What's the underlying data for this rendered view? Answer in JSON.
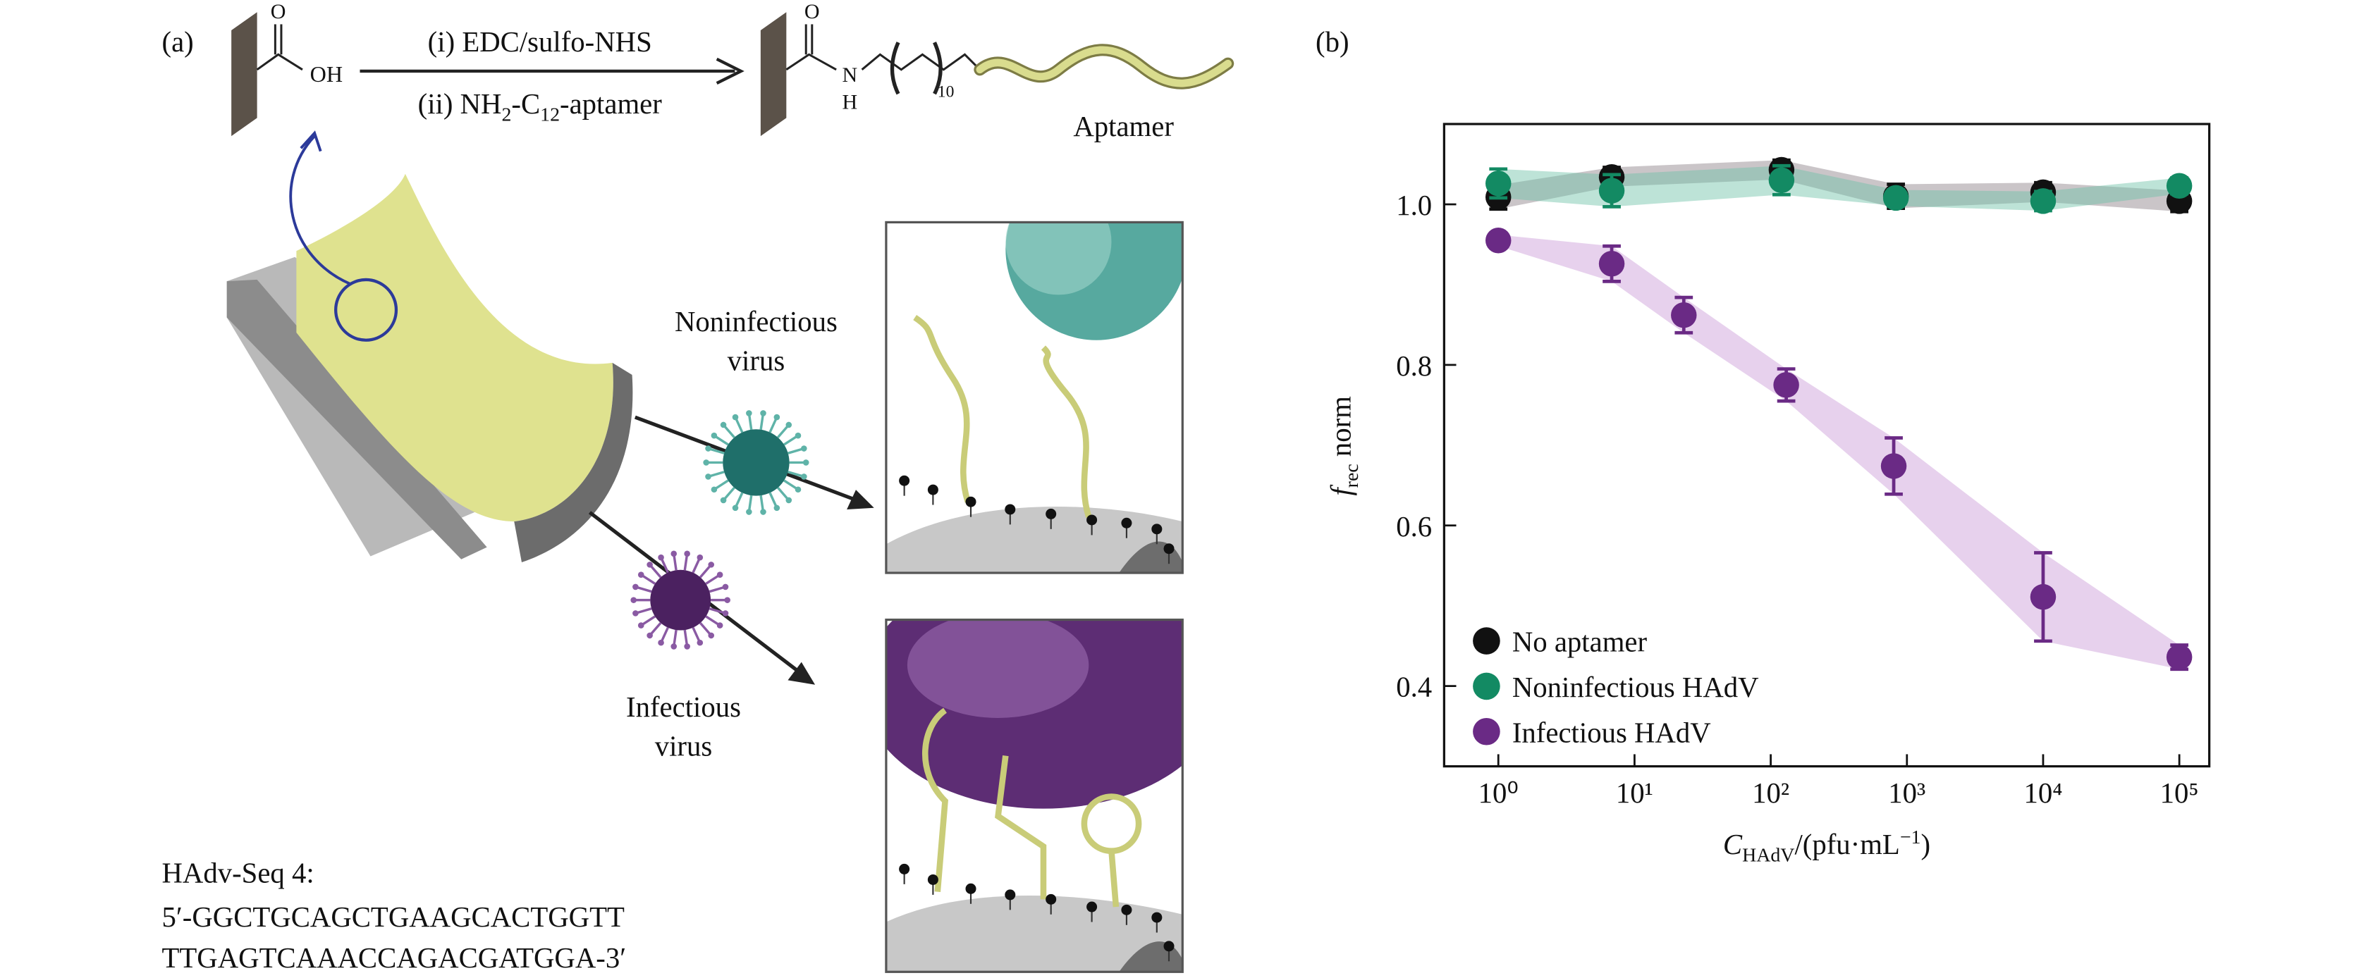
{
  "panel_a": {
    "label": "(a)",
    "acid": {
      "o": "O",
      "oh": "OH"
    },
    "step_i": "(i) EDC/sulfo-NHS",
    "step_ii": [
      "(ii) NH",
      "2",
      "-C",
      "12",
      "-aptamer"
    ],
    "amide": {
      "o": "O",
      "n": "N",
      "h": "H",
      "repeat": "10"
    },
    "aptamer": "Aptamer",
    "noninfectious": [
      "Noninfectious",
      "virus"
    ],
    "infectious": [
      "Infectious",
      "virus"
    ],
    "sequence": [
      "HAdv-Seq 4:",
      "5′-GGCTGCAGCTGAAGCACTGGTT",
      "TTGAGTCAAACCAGACGATGGA-3′"
    ]
  },
  "chart_data": {
    "type": "scatter",
    "panel_label": "(b)",
    "xlabel": [
      "C",
      "HAdV",
      "/(pfu·mL",
      "−1",
      ")"
    ],
    "ylabel": [
      "f",
      "rec",
      " norm"
    ],
    "xscale": "log",
    "xlim": [
      0.4,
      166000
    ],
    "xticks": [
      {
        "value": 1,
        "label": "10⁰"
      },
      {
        "value": 10,
        "label": "10¹"
      },
      {
        "value": 100,
        "label": "10²"
      },
      {
        "value": 1000,
        "label": "10³"
      },
      {
        "value": 10000,
        "label": "10⁴"
      },
      {
        "value": 100000,
        "label": "10⁵"
      }
    ],
    "ylim": [
      0.3,
      1.1
    ],
    "yticks": [
      0.4,
      0.6,
      0.8,
      {
        "value": 1,
        "label": "1.0"
      }
    ],
    "legend": "lower left",
    "series": [
      {
        "name": "No aptamer",
        "color": "#111111",
        "band_color": "#8a7f86",
        "x": [
          1,
          6.8,
          120,
          830,
          10000,
          100000
        ],
        "values": [
          1.009,
          1.034,
          1.043,
          1.01,
          1.015,
          1.004
        ],
        "errors": [
          0.015,
          0.012,
          0.012,
          0.015,
          0.012,
          0.013
        ]
      },
      {
        "name": "Noninfectious HAdV",
        "color": "#138a63",
        "band_color": "#6cc2a6",
        "x": [
          1,
          6.8,
          120,
          830,
          10000,
          100000
        ],
        "values": [
          1.026,
          1.017,
          1.03,
          1.008,
          1.004,
          1.023
        ],
        "errors": [
          0.018,
          0.02,
          0.018,
          0.01,
          0.012,
          0.01
        ]
      },
      {
        "name": "Infectious HAdV",
        "color": "#6a2a85",
        "band_color": "#c99ad6",
        "x": [
          1,
          6.8,
          23,
          130,
          800,
          10000,
          100000
        ],
        "values": [
          0.955,
          0.926,
          0.862,
          0.775,
          0.674,
          0.511,
          0.436
        ],
        "errors": [
          0.007,
          0.022,
          0.022,
          0.02,
          0.035,
          0.055,
          0.015
        ]
      }
    ]
  }
}
